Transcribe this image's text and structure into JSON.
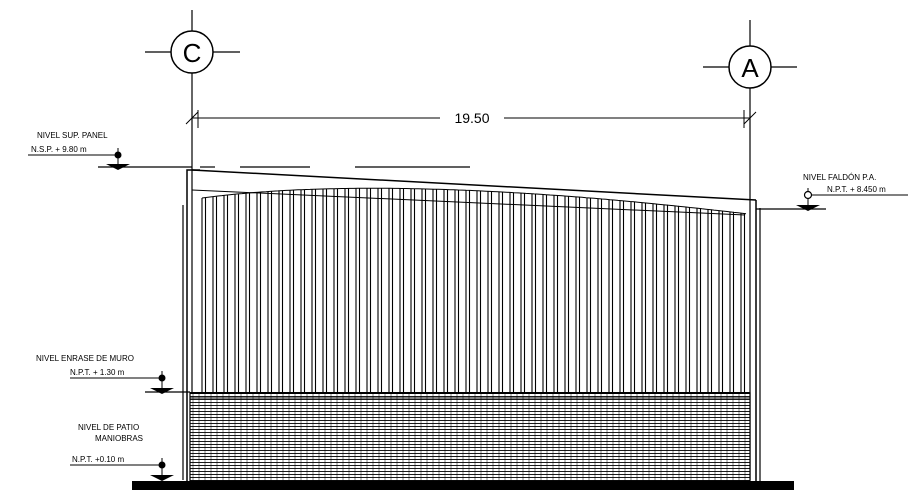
{
  "axes": [
    {
      "label": "C"
    },
    {
      "label": "A"
    }
  ],
  "dimension": {
    "value": "19.50"
  },
  "levels": {
    "top_panel": {
      "name": "NIVEL SUP. PANEL",
      "value": "N.S.P. + 9.80 m"
    },
    "fascia": {
      "name": "NIVEL FALDÓN P.A.",
      "value": "N.P.T. + 8.450 m"
    },
    "wall_top": {
      "name": "NIVEL ENRASE DE MURO",
      "value": "N.P.T. + 1.30 m"
    },
    "yard": {
      "name_line1": "NIVEL DE PATIO",
      "name_line2": "MANIOBRAS",
      "value": "N.P.T. +0.10 m"
    }
  },
  "colors": {
    "ink": "#000000",
    "paper": "#ffffff"
  }
}
